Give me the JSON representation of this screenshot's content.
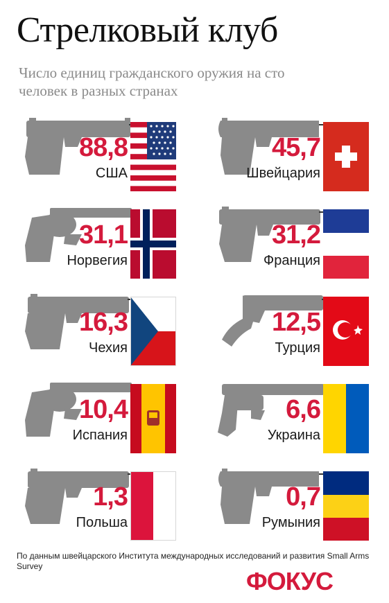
{
  "title": "Стрелковый клуб",
  "subtitle": "Число единиц гражданского оружия на сто человек в разных странах",
  "items": [
    {
      "value": "88,8",
      "country": "США",
      "flag": "usa"
    },
    {
      "value": "45,7",
      "country": "Швейцария",
      "flag": "switzerland"
    },
    {
      "value": "31,1",
      "country": "Норвегия",
      "flag": "norway"
    },
    {
      "value": "31,2",
      "country": "Франция",
      "flag": "france"
    },
    {
      "value": "16,3",
      "country": "Чехия",
      "flag": "czech"
    },
    {
      "value": "12,5",
      "country": "Турция",
      "flag": "turkey"
    },
    {
      "value": "10,4",
      "country": "Испания",
      "flag": "spain"
    },
    {
      "value": "6,6",
      "country": "Украина",
      "flag": "ukraine"
    },
    {
      "value": "1,3",
      "country": "Польша",
      "flag": "poland"
    },
    {
      "value": "0,7",
      "country": "Румыния",
      "flag": "romania"
    }
  ],
  "footnote": "По данным швейцарского Института международных исследований и развития Small Arms Survey",
  "logo": "ФОКУС",
  "colors": {
    "accent": "#d41a3c",
    "gun": "#8a8a8a"
  }
}
